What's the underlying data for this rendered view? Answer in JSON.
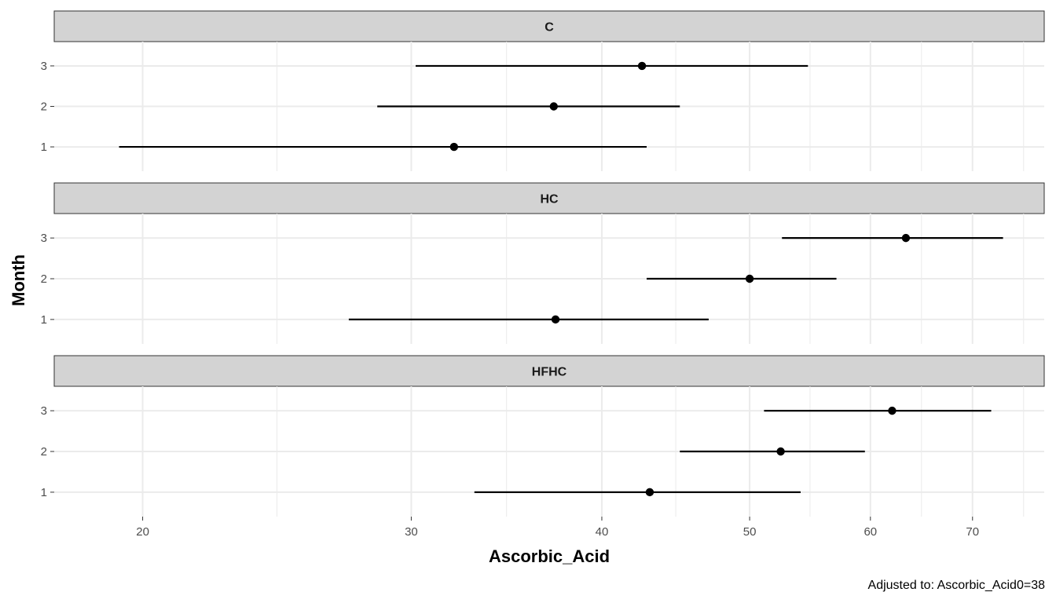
{
  "chart_data": {
    "type": "scatter",
    "subtype": "dot-and-whisker (faceted)",
    "xlabel": "Ascorbic_Acid",
    "ylabel": "Month",
    "caption": "Adjusted to: Ascorbic_Acid0=38",
    "x_scale": "log",
    "xlim": [
      17.5,
      78
    ],
    "x_ticks": [
      20,
      30,
      40,
      50,
      60,
      70
    ],
    "y_categories": [
      "1",
      "2",
      "3"
    ],
    "grid": true,
    "facets": [
      {
        "label": "C",
        "points": [
          {
            "month": "3",
            "estimate": 42.5,
            "lower": 30.2,
            "upper": 54.6
          },
          {
            "month": "2",
            "estimate": 37.2,
            "lower": 28.5,
            "upper": 45.0
          },
          {
            "month": "1",
            "estimate": 32.0,
            "lower": 19.3,
            "upper": 42.8
          }
        ]
      },
      {
        "label": "HC",
        "points": [
          {
            "month": "3",
            "estimate": 63.3,
            "lower": 52.5,
            "upper": 73.3
          },
          {
            "month": "2",
            "estimate": 50.0,
            "lower": 42.8,
            "upper": 57.0
          },
          {
            "month": "1",
            "estimate": 37.3,
            "lower": 27.3,
            "upper": 47.0
          }
        ]
      },
      {
        "label": "HFHC",
        "points": [
          {
            "month": "3",
            "estimate": 62.0,
            "lower": 51.1,
            "upper": 72.0
          },
          {
            "month": "2",
            "estimate": 52.4,
            "lower": 45.0,
            "upper": 59.5
          },
          {
            "month": "1",
            "estimate": 43.0,
            "lower": 33.0,
            "upper": 54.0
          }
        ]
      }
    ]
  }
}
